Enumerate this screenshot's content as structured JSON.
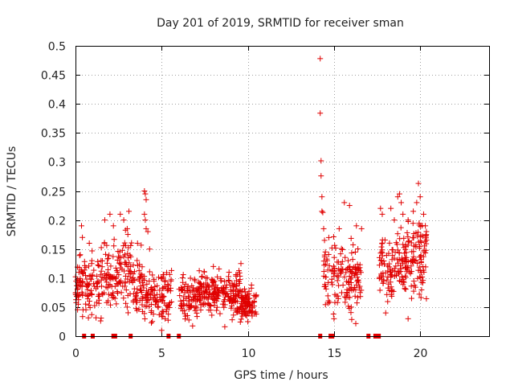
{
  "chart_data": {
    "type": "scatter",
    "title": "Day 201 of 2019, SRMTID for receiver sman",
    "xlabel": "GPS time / hours",
    "ylabel": "SRMTID / TECUs",
    "xlim": [
      0,
      24
    ],
    "ylim": [
      0,
      0.5
    ],
    "xticks": [
      0,
      5,
      10,
      15,
      20
    ],
    "xtick_labels": [
      "0",
      "5",
      "10",
      "15",
      "20"
    ],
    "yticks": [
      0,
      0.05,
      0.1,
      0.15,
      0.2,
      0.25,
      0.3,
      0.35,
      0.4,
      0.45,
      0.5
    ],
    "ytick_labels": [
      "0",
      "0.05",
      "0.1",
      "0.15",
      "0.2",
      "0.25",
      "0.3",
      "0.35",
      "0.4",
      "0.45",
      "0.5"
    ],
    "grid": true,
    "marker": "+",
    "color": "#e00000",
    "series": [
      {
        "name": "SRMTID",
        "clusters": [
          {
            "x_range": [
              0.0,
              0.45
            ],
            "y_center": 0.09,
            "spread": 0.022,
            "count": 45
          },
          {
            "x_range": [
              0.5,
              1.4
            ],
            "y_center": 0.09,
            "spread": 0.025,
            "count": 60
          },
          {
            "x_range": [
              1.4,
              2.4
            ],
            "y_center": 0.1,
            "spread": 0.03,
            "count": 70
          },
          {
            "x_range": [
              2.4,
              3.3
            ],
            "y_center": 0.11,
            "spread": 0.03,
            "count": 65
          },
          {
            "x_range": [
              3.3,
              4.4
            ],
            "y_center": 0.085,
            "spread": 0.025,
            "count": 80
          },
          {
            "x_range": [
              4.4,
              5.6
            ],
            "y_center": 0.07,
            "spread": 0.02,
            "count": 80
          },
          {
            "x_range": [
              6.0,
              7.2
            ],
            "y_center": 0.065,
            "spread": 0.018,
            "count": 90
          },
          {
            "x_range": [
              7.2,
              8.6
            ],
            "y_center": 0.075,
            "spread": 0.02,
            "count": 110
          },
          {
            "x_range": [
              8.6,
              9.6
            ],
            "y_center": 0.07,
            "spread": 0.02,
            "count": 90
          },
          {
            "x_range": [
              9.6,
              10.5
            ],
            "y_center": 0.055,
            "spread": 0.012,
            "count": 90
          },
          {
            "x_range": [
              14.4,
              15.6
            ],
            "y_center": 0.11,
            "spread": 0.03,
            "count": 70
          },
          {
            "x_range": [
              15.6,
              16.6
            ],
            "y_center": 0.095,
            "spread": 0.028,
            "count": 80
          },
          {
            "x_range": [
              17.6,
              18.6
            ],
            "y_center": 0.12,
            "spread": 0.03,
            "count": 70
          },
          {
            "x_range": [
              18.6,
              19.6
            ],
            "y_center": 0.125,
            "spread": 0.03,
            "count": 80
          },
          {
            "x_range": [
              19.6,
              20.4
            ],
            "y_center": 0.14,
            "spread": 0.03,
            "count": 70
          }
        ],
        "points": [
          [
            0.2,
            0.11
          ],
          [
            0.35,
            0.19
          ],
          [
            0.4,
            0.17
          ],
          [
            0.8,
            0.16
          ],
          [
            1.7,
            0.2
          ],
          [
            2.0,
            0.21
          ],
          [
            2.2,
            0.19
          ],
          [
            2.6,
            0.21
          ],
          [
            2.8,
            0.2
          ],
          [
            3.0,
            0.185
          ],
          [
            3.1,
            0.215
          ],
          [
            3.6,
            0.16
          ],
          [
            4.0,
            0.25
          ],
          [
            4.05,
            0.245
          ],
          [
            4.1,
            0.235
          ],
          [
            4.0,
            0.21
          ],
          [
            4.05,
            0.2
          ],
          [
            4.1,
            0.185
          ],
          [
            4.2,
            0.18
          ],
          [
            4.3,
            0.15
          ],
          [
            5.0,
            0.01
          ],
          [
            5.2,
            0.03
          ],
          [
            14.2,
            0.478
          ],
          [
            14.2,
            0.384
          ],
          [
            14.25,
            0.302
          ],
          [
            14.25,
            0.276
          ],
          [
            14.3,
            0.24
          ],
          [
            14.3,
            0.215
          ],
          [
            14.35,
            0.213
          ],
          [
            14.4,
            0.185
          ],
          [
            14.45,
            0.165
          ],
          [
            14.5,
            0.145
          ],
          [
            14.6,
            0.13
          ],
          [
            15.3,
            0.185
          ],
          [
            15.6,
            0.23
          ],
          [
            15.9,
            0.225
          ],
          [
            16.3,
            0.19
          ],
          [
            16.6,
            0.185
          ],
          [
            17.7,
            0.22
          ],
          [
            17.8,
            0.21
          ],
          [
            18.3,
            0.22
          ],
          [
            18.5,
            0.2
          ],
          [
            18.7,
            0.24
          ],
          [
            18.8,
            0.245
          ],
          [
            18.9,
            0.23
          ],
          [
            19.0,
            0.21
          ],
          [
            19.3,
            0.2
          ],
          [
            19.6,
            0.215
          ],
          [
            19.8,
            0.23
          ],
          [
            19.9,
            0.263
          ],
          [
            20.0,
            0.24
          ],
          [
            20.2,
            0.21
          ],
          [
            20.3,
            0.19
          ],
          [
            19.5,
            0.065
          ],
          [
            19.3,
            0.03
          ],
          [
            18.0,
            0.04
          ],
          [
            16.0,
            0.05
          ],
          [
            15.0,
            0.03
          ],
          [
            10.0,
            0.025
          ],
          [
            9.6,
            0.125
          ],
          [
            8.0,
            0.12
          ],
          [
            3.0,
            0.05
          ]
        ]
      },
      {
        "name": "data gaps",
        "description": "markers along y = 0",
        "x": [
          0.5,
          1.0,
          2.2,
          2.3,
          3.2,
          5.4,
          6.0,
          14.2,
          14.8,
          14.9,
          17.0,
          17.4,
          17.6
        ]
      }
    ]
  }
}
